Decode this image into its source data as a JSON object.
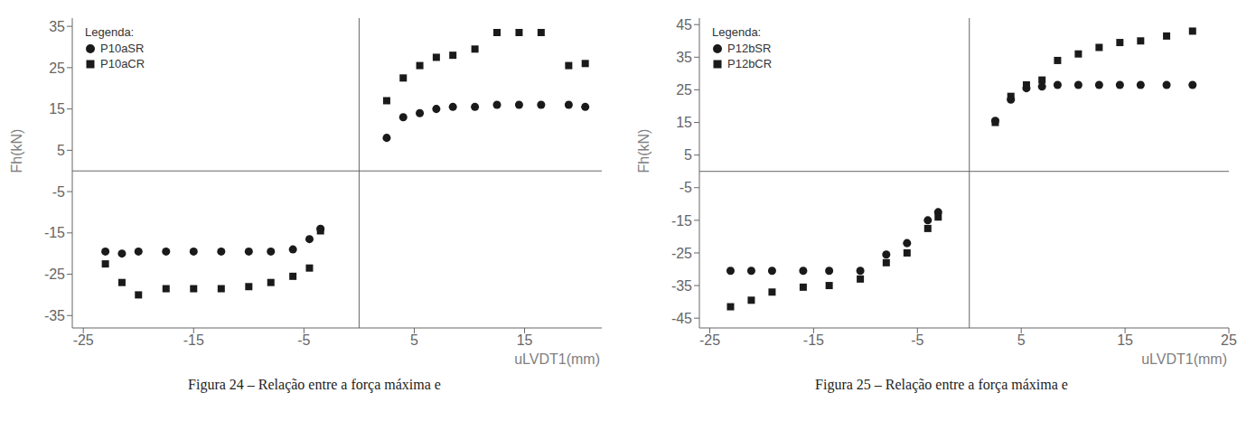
{
  "chart_data": [
    {
      "type": "scatter",
      "xlabel": "uLVDT1(mm)",
      "ylabel": "Fh(kN)",
      "caption": "Figura 24 – Relação entre a força máxima e",
      "legend": "upper left",
      "legend_title": "Legenda:",
      "grid": false,
      "xlim": [
        -26,
        22
      ],
      "ylim": [
        -38,
        37
      ],
      "xticks": [
        -25,
        -15,
        -5,
        5,
        15
      ],
      "yticks": [
        -35,
        -25,
        -15,
        -5,
        5,
        15,
        25,
        35
      ],
      "series": [
        {
          "name": "P10aSR",
          "color": "#1a1a1a",
          "marker": "circle",
          "x": [
            2.5,
            4.0,
            5.5,
            7.0,
            8.5,
            10.5,
            12.5,
            14.5,
            16.5,
            19.0,
            20.5,
            -23.0,
            -21.5,
            -20.0,
            -17.5,
            -15.0,
            -12.5,
            -10.0,
            -8.0,
            -6.0,
            -4.5,
            -3.5
          ],
          "values": [
            8.0,
            13.0,
            14.0,
            15.0,
            15.5,
            15.5,
            16.0,
            16.0,
            16.0,
            16.0,
            15.5,
            -19.5,
            -20.0,
            -19.5,
            -19.5,
            -19.5,
            -19.5,
            -19.5,
            -19.5,
            -19.0,
            -16.5,
            -14.0
          ]
        },
        {
          "name": "P10aCR",
          "color": "#1a1a1a",
          "marker": "square",
          "x": [
            2.5,
            4.0,
            5.5,
            7.0,
            8.5,
            10.5,
            12.5,
            14.5,
            16.5,
            19.0,
            20.5,
            -23.0,
            -21.5,
            -20.0,
            -17.5,
            -15.0,
            -12.5,
            -10.0,
            -8.0,
            -6.0,
            -4.5,
            -3.5
          ],
          "values": [
            17.0,
            22.5,
            25.5,
            27.5,
            28.0,
            29.5,
            33.5,
            33.5,
            33.5,
            25.5,
            26.0,
            -22.5,
            -27.0,
            -30.0,
            -28.5,
            -28.5,
            -28.5,
            -28.0,
            -27.0,
            -25.5,
            -23.5,
            -14.5
          ]
        }
      ]
    },
    {
      "type": "scatter",
      "xlabel": "uLVDT1(mm)",
      "ylabel": "Fh(kN)",
      "caption": "Figura 25 – Relação entre a força máxima e",
      "legend": "upper left",
      "legend_title": "Legenda:",
      "grid": false,
      "xlim": [
        -26,
        25
      ],
      "ylim": [
        -48,
        47
      ],
      "xticks": [
        -25,
        -15,
        -5,
        5,
        15,
        25
      ],
      "yticks": [
        -45,
        -35,
        -25,
        -15,
        -5,
        5,
        15,
        25,
        35,
        45
      ],
      "series": [
        {
          "name": "P12bSR",
          "color": "#1a1a1a",
          "marker": "circle",
          "x": [
            2.5,
            4.0,
            5.5,
            7.0,
            8.5,
            10.5,
            12.5,
            14.5,
            16.5,
            19.0,
            21.5,
            -23.0,
            -21.0,
            -19.0,
            -16.0,
            -13.5,
            -10.5,
            -8.0,
            -6.0,
            -4.0,
            -3.0
          ],
          "values": [
            15.5,
            22.0,
            25.5,
            26.0,
            26.5,
            26.5,
            26.5,
            26.5,
            26.5,
            26.5,
            26.5,
            -30.5,
            -30.5,
            -30.5,
            -30.5,
            -30.5,
            -30.5,
            -25.5,
            -22.0,
            -15.0,
            -12.5
          ]
        },
        {
          "name": "P12bCR",
          "color": "#1a1a1a",
          "marker": "square",
          "x": [
            2.5,
            4.0,
            5.5,
            7.0,
            8.5,
            10.5,
            12.5,
            14.5,
            16.5,
            19.0,
            21.5,
            -23.0,
            -21.0,
            -19.0,
            -16.0,
            -13.5,
            -10.5,
            -8.0,
            -6.0,
            -4.0,
            -3.0
          ],
          "values": [
            15.0,
            23.0,
            26.5,
            28.0,
            34.0,
            36.0,
            38.0,
            39.5,
            40.0,
            41.5,
            43.0,
            -41.5,
            -39.5,
            -37.0,
            -35.5,
            -35.0,
            -33.0,
            -28.0,
            -25.0,
            -17.5,
            -14.0
          ]
        }
      ]
    }
  ]
}
